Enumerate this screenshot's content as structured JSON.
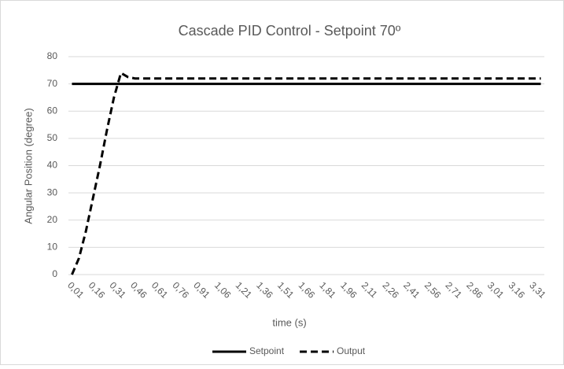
{
  "chart_data": {
    "type": "line",
    "title": "Cascade PID Control - Setpoint 70º",
    "x_label": "time (s)",
    "y_label": "Angular Position (degree)",
    "categories": [
      "0,01",
      null,
      null,
      "0,16",
      null,
      null,
      "0,31",
      null,
      null,
      "0,46",
      null,
      null,
      "0,61",
      null,
      null,
      "0,76",
      null,
      null,
      "0,91",
      null,
      null,
      "1,06",
      null,
      null,
      "1,21",
      null,
      null,
      "1,36",
      null,
      null,
      "1,51",
      null,
      null,
      "1,66",
      null,
      null,
      "1,81",
      null,
      null,
      "1,96",
      null,
      null,
      "2,11",
      null,
      null,
      "2,26",
      null,
      null,
      "2,41",
      null,
      null,
      "2,56",
      null,
      null,
      "2,71",
      null,
      null,
      "2,86",
      null,
      null,
      "3,01",
      null,
      null,
      "3,16",
      null,
      null,
      "3,31",
      null
    ],
    "series": [
      {
        "name": "Setpoint",
        "color": "#000000",
        "dash": false,
        "values": [
          70,
          70,
          70,
          70,
          70,
          70,
          70,
          70,
          70,
          70,
          70,
          70,
          70,
          70,
          70,
          70,
          70,
          70,
          70,
          70,
          70,
          70,
          70,
          70,
          70,
          70,
          70,
          70,
          70,
          70,
          70,
          70,
          70,
          70,
          70,
          70,
          70,
          70,
          70,
          70,
          70,
          70,
          70,
          70,
          70,
          70,
          70,
          70,
          70,
          70,
          70,
          70,
          70,
          70,
          70,
          70,
          70,
          70,
          70,
          70,
          70,
          70,
          70,
          70,
          70,
          70,
          70,
          70
        ]
      },
      {
        "name": "Output",
        "color": "#000000",
        "dash": true,
        "values": [
          0,
          6,
          16,
          28,
          40,
          53,
          65,
          74,
          72.5,
          72,
          72,
          72,
          72,
          72,
          72,
          72,
          72,
          72,
          72,
          72,
          72,
          72,
          72,
          72,
          72,
          72,
          72,
          72,
          72,
          72,
          72,
          72,
          72,
          72,
          72,
          72,
          72,
          72,
          72,
          72,
          72,
          72,
          72,
          72,
          72,
          72,
          72,
          72,
          72,
          72,
          72,
          72,
          72,
          72,
          72,
          72,
          72,
          72,
          72,
          72,
          72,
          72,
          72,
          72,
          72,
          72,
          72,
          72
        ]
      }
    ],
    "ylim": [
      0,
      80
    ],
    "yticks": [
      0,
      10,
      20,
      30,
      40,
      50,
      60,
      70,
      80
    ],
    "grid": true,
    "legend": "bottom"
  }
}
